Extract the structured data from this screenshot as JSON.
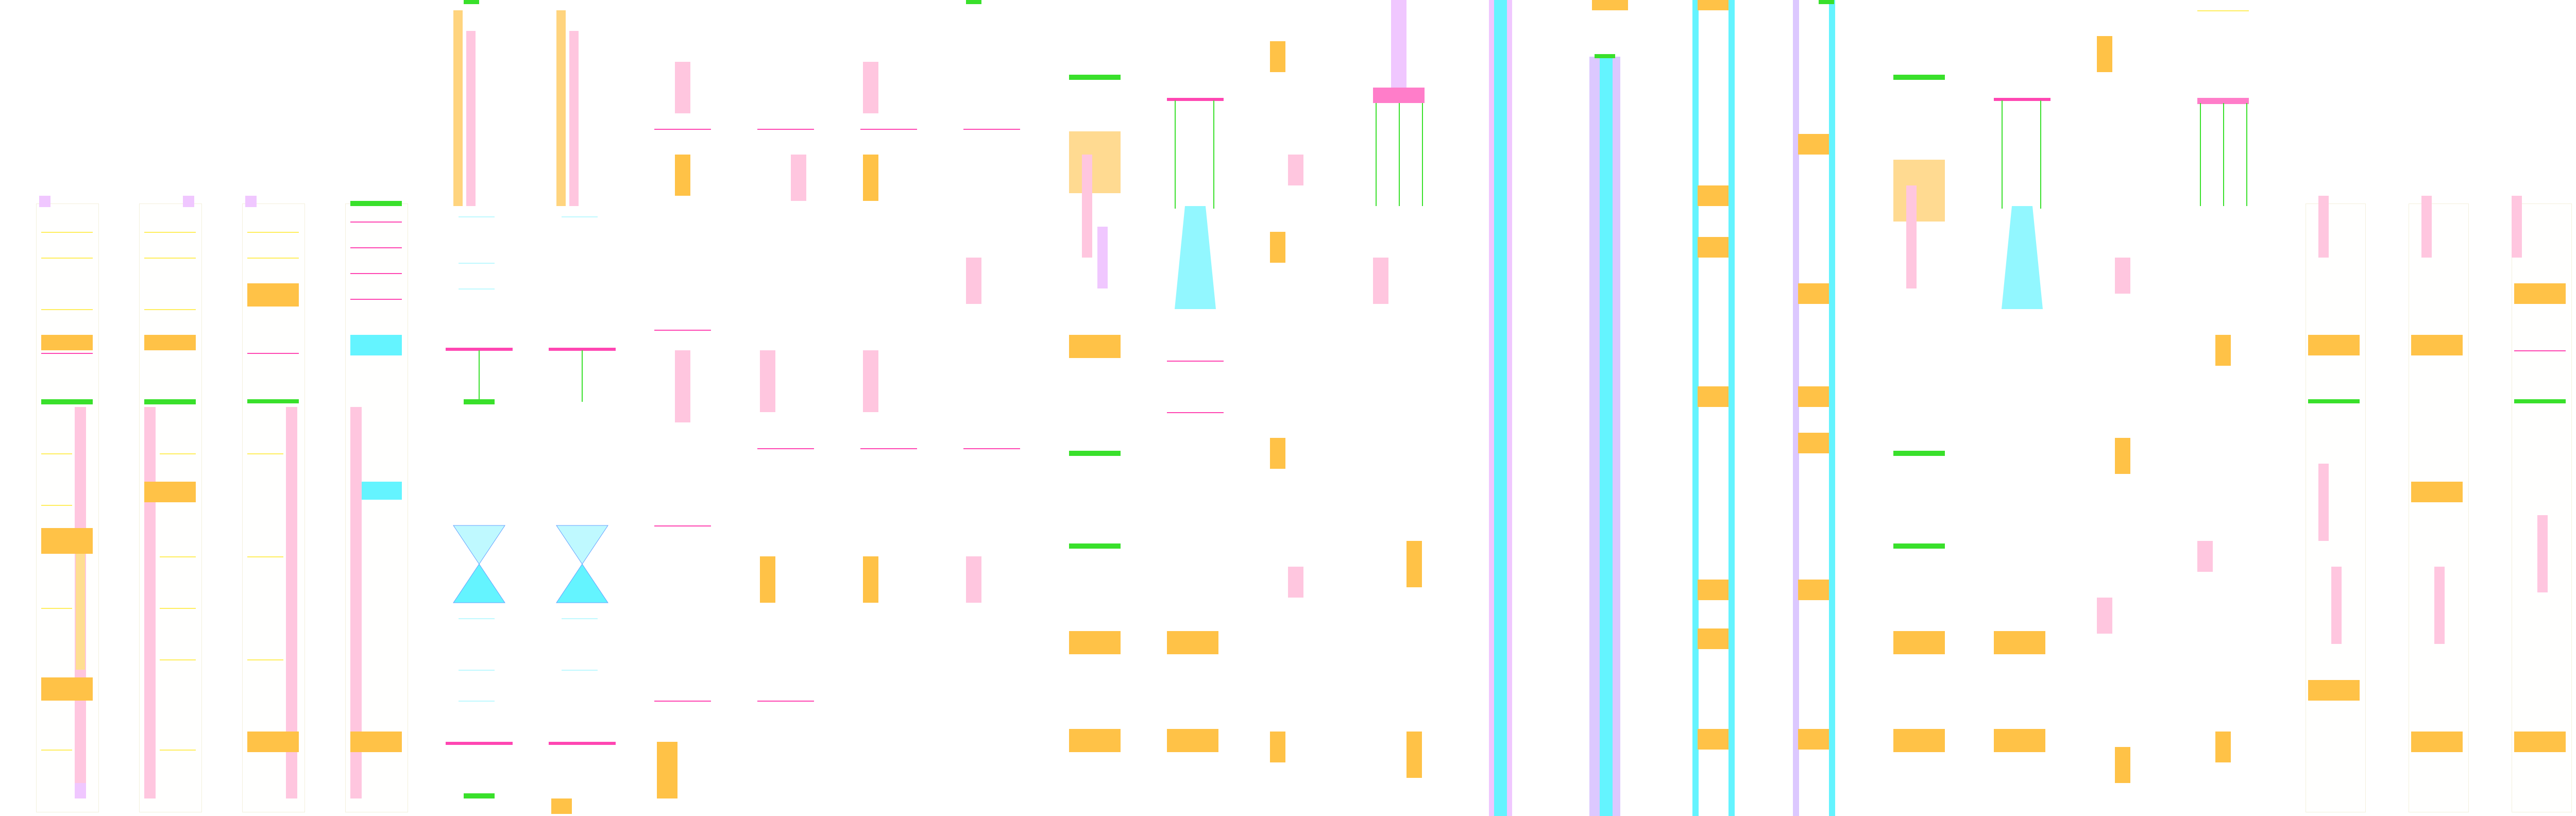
{
  "canvas": {
    "background": "#ffffff",
    "palette": {
      "cyan": "#64f4ff",
      "light_cyan": "#bff9ff",
      "violet": "#dcc8ff",
      "magenta": "#ff46b2",
      "pink": "#ffc6df",
      "yellow": "#ffee5e",
      "orange": "#ffc247",
      "green": "#39e02b",
      "lavender": "#f0c7ff"
    },
    "column_count": 26,
    "columns": [
      {
        "kind": "stack"
      },
      {
        "kind": "stack"
      },
      {
        "kind": "stack"
      },
      {
        "kind": "stack-blue"
      },
      {
        "kind": "pendulum"
      },
      {
        "kind": "pendulum"
      },
      {
        "kind": "steps"
      },
      {
        "kind": "steps"
      },
      {
        "kind": "steps"
      },
      {
        "kind": "steps"
      },
      {
        "kind": "cascade"
      },
      {
        "kind": "funnel"
      },
      {
        "kind": "steps"
      },
      {
        "kind": "fan"
      },
      {
        "kind": "beam-cyan"
      },
      {
        "kind": "beam-violet"
      },
      {
        "kind": "ladder"
      },
      {
        "kind": "ladder"
      },
      {
        "kind": "cascade"
      },
      {
        "kind": "funnel"
      },
      {
        "kind": "steps"
      },
      {
        "kind": "fan"
      },
      {
        "kind": "stack"
      },
      {
        "kind": "stack"
      },
      {
        "kind": "stack"
      },
      {
        "kind": "stack-blue"
      }
    ]
  }
}
